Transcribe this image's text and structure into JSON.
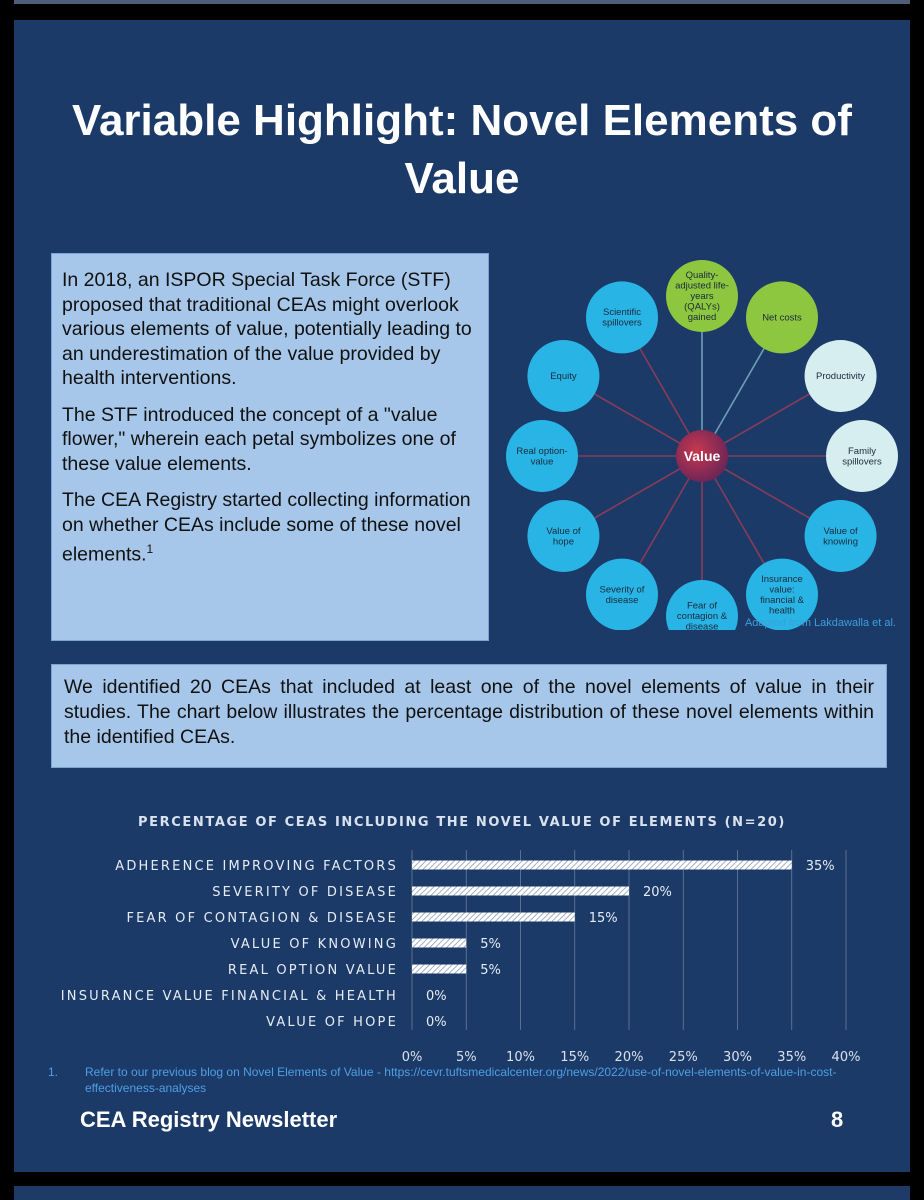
{
  "title": "Variable Highlight: Novel Elements of Value",
  "intro": {
    "p1": "In 2018, an ISPOR Special Task Force (STF) proposed that traditional CEAs might overlook various elements of value, potentially leading to an underestimation of the value provided by health interventions.",
    "p2": "The STF introduced the concept of a \"value flower,\" wherein each petal symbolizes one of these value elements.",
    "p3": "The CEA Registry started collecting information on whether CEAs include some of these novel elements.",
    "p3_sup": "1"
  },
  "value_flower": {
    "center": "Value",
    "petals": [
      {
        "lines": [
          "Quality-",
          "adjusted life-",
          "years",
          "(QALYs)",
          "gained"
        ],
        "color": "#8dc63f"
      },
      {
        "lines": [
          "Net costs"
        ],
        "color": "#8dc63f"
      },
      {
        "lines": [
          "Productivity"
        ],
        "color": "#d6eef0"
      },
      {
        "lines": [
          "Family",
          "spillovers"
        ],
        "color": "#d6eef0"
      },
      {
        "lines": [
          "Value of",
          "knowing"
        ],
        "color": "#29b4e6"
      },
      {
        "lines": [
          "Insurance",
          "value:",
          "financial &",
          "health"
        ],
        "color": "#29b4e6"
      },
      {
        "lines": [
          "Fear of",
          "contagion &",
          "disease"
        ],
        "color": "#29b4e6"
      },
      {
        "lines": [
          "Severity of",
          "disease"
        ],
        "color": "#29b4e6"
      },
      {
        "lines": [
          "Value of",
          "hope"
        ],
        "color": "#29b4e6"
      },
      {
        "lines": [
          "Real option-",
          "value"
        ],
        "color": "#29b4e6"
      },
      {
        "lines": [
          "Equity"
        ],
        "color": "#29b4e6"
      },
      {
        "lines": [
          "Scientific",
          "spillovers"
        ],
        "color": "#29b4e6"
      }
    ],
    "caption": "Adapted from Lakdawalla et al."
  },
  "summary": "We identified 20 CEAs that included at least one of the novel elements of value in their studies. The chart below illustrates the percentage distribution of these novel elements within the identified CEAs.",
  "chart_data": {
    "type": "bar",
    "orientation": "horizontal",
    "title": "PERCENTAGE OF CEAS INCLUDING THE NOVEL VALUE OF ELEMENTS (N=20)",
    "categories": [
      "ADHERENCE IMPROVING FACTORS",
      "SEVERITY OF DISEASE",
      "FEAR OF CONTAGION & DISEASE",
      "VALUE OF KNOWING",
      "REAL OPTION VALUE",
      "INSURANCE VALUE FINANCIAL & HEALTH",
      "VALUE OF HOPE"
    ],
    "values": [
      35,
      20,
      15,
      5,
      5,
      0,
      0
    ],
    "value_labels": [
      "35%",
      "20%",
      "15%",
      "5%",
      "5%",
      "0%",
      "0%"
    ],
    "xlim": [
      0,
      40
    ],
    "xticks": [
      "0%",
      "5%",
      "10%",
      "15%",
      "20%",
      "25%",
      "30%",
      "35%",
      "40%"
    ],
    "grid": true
  },
  "footnote": {
    "num": "1.",
    "text": "Refer to our previous blog on Novel Elements of Value - https://cevr.tuftsmedicalcenter.org/news/2022/use-of-novel-elements-of-value-in-cost-effectiveness-analyses"
  },
  "footer": {
    "newsletter": "CEA Registry Newsletter",
    "page": "8"
  }
}
